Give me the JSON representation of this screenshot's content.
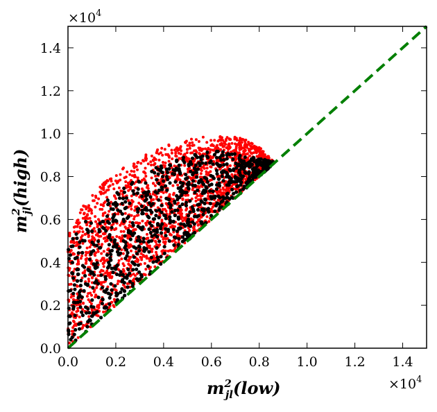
{
  "chart_data": {
    "type": "scatter",
    "xlabel": {
      "base": "m",
      "sup": "2",
      "sub": "jl",
      "arg": "(low)"
    },
    "ylabel": {
      "base": "m",
      "sup": "2",
      "sub": "jl",
      "arg": "(high)"
    },
    "x_multiplier": {
      "prefix": "×10",
      "exp": "4"
    },
    "y_multiplier": {
      "prefix": "×10",
      "exp": "4"
    },
    "xlim": [
      0.0,
      1.5
    ],
    "ylim": [
      0.0,
      1.5
    ],
    "xticks": [
      "0.0",
      "0.2",
      "0.4",
      "0.6",
      "0.8",
      "1.0",
      "1.2",
      "1.4"
    ],
    "yticks": [
      "0.0",
      "0.2",
      "0.4",
      "0.6",
      "0.8",
      "1.0",
      "1.2",
      "1.4"
    ],
    "grid": false,
    "legend": null,
    "reference_line": {
      "name": "diagonal y = x",
      "style": "dashed",
      "color": "#007f00",
      "x": [
        0.0,
        1.5
      ],
      "y": [
        0.0,
        1.5
      ]
    },
    "series": [
      {
        "name": "red points",
        "color": "#ff0000",
        "marker_size": 2.0,
        "n_points": 2200,
        "seed": 7,
        "region": "0 ≤ x ≤ 0.86, x ≤ y ≤ upper edge",
        "upper_edge": {
          "x": [
            0.0,
            0.05,
            0.1,
            0.2,
            0.3,
            0.4,
            0.5,
            0.6,
            0.7,
            0.78,
            0.86
          ],
          "y": [
            0.52,
            0.64,
            0.72,
            0.82,
            0.89,
            0.94,
            0.975,
            0.99,
            0.985,
            0.96,
            0.87
          ]
        }
      },
      {
        "name": "black points",
        "color": "#000000",
        "marker_size": 2.6,
        "n_points": 900,
        "seed": 13,
        "region": "0 ≤ x ≤ 0.86, x ≤ y ≤ upper edge",
        "upper_edge": {
          "x": [
            0.0,
            0.05,
            0.1,
            0.2,
            0.3,
            0.4,
            0.5,
            0.6,
            0.7,
            0.78,
            0.86
          ],
          "y": [
            0.48,
            0.56,
            0.64,
            0.73,
            0.8,
            0.86,
            0.9,
            0.92,
            0.91,
            0.89,
            0.87
          ]
        }
      }
    ]
  }
}
